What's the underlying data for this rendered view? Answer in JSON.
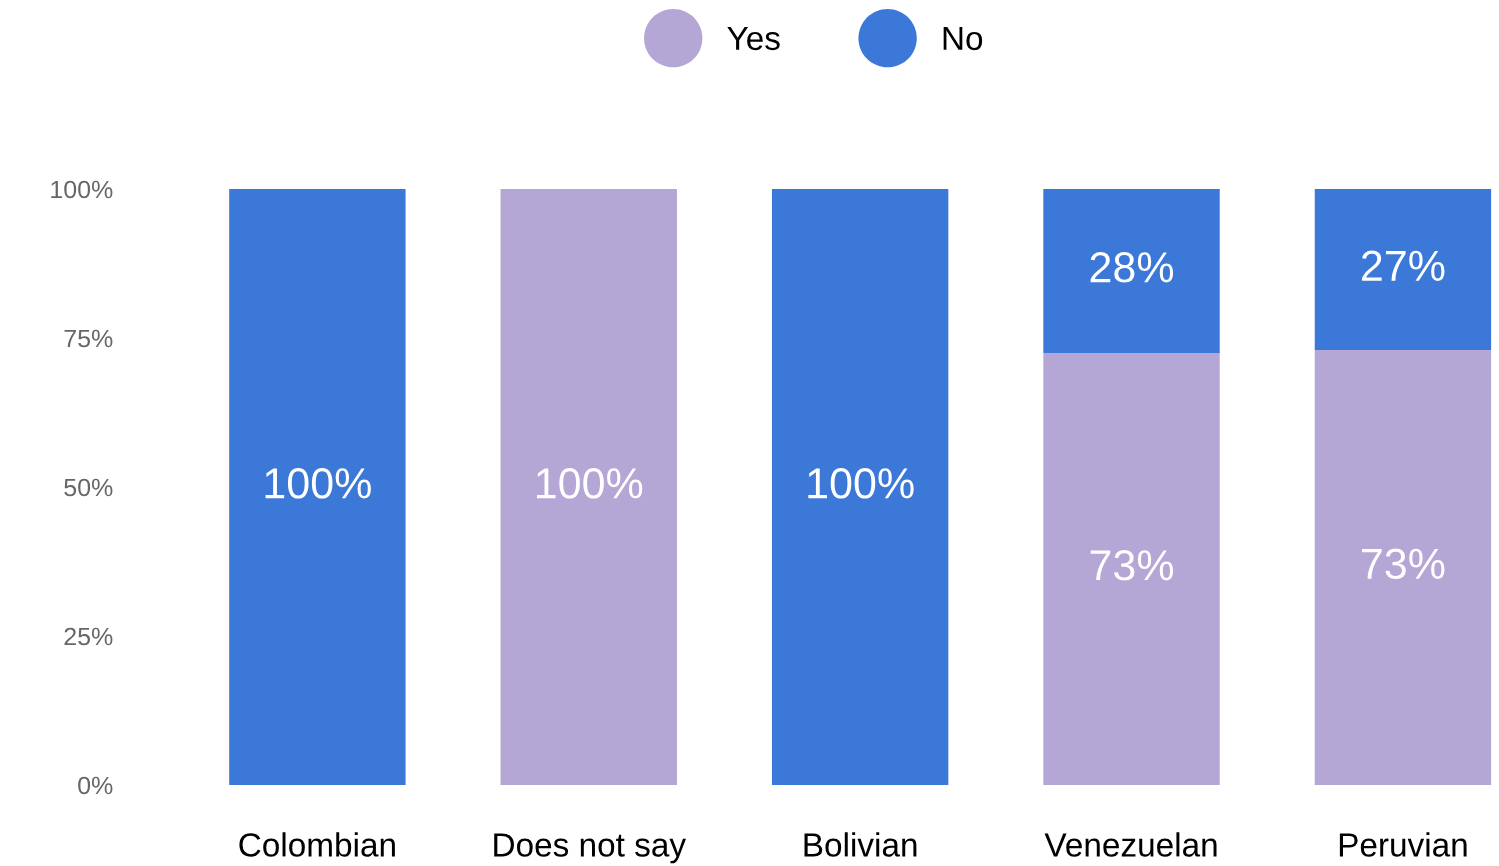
{
  "chart_data": {
    "type": "bar",
    "stacked": true,
    "categories": [
      "Colombian",
      "Does not say",
      "Bolivian",
      "Venezuelan",
      "Peruvian"
    ],
    "series": [
      {
        "name": "Yes",
        "color": "#b4a7d6",
        "values": [
          0,
          100,
          0,
          72.5,
          73
        ],
        "value_labels": [
          null,
          "100%",
          null,
          "73%",
          "73%"
        ]
      },
      {
        "name": "No",
        "color": "#3c78d8",
        "values": [
          100,
          0,
          100,
          27.5,
          27
        ],
        "value_labels": [
          "100%",
          null,
          "100%",
          "28%",
          "27%"
        ]
      }
    ],
    "ylim": [
      0,
      100
    ],
    "yticks": [
      {
        "value": 0,
        "label": "0%"
      },
      {
        "value": 25,
        "label": "25%"
      },
      {
        "value": 50,
        "label": "50%"
      },
      {
        "value": 75,
        "label": "75%"
      },
      {
        "value": 100,
        "label": "100%"
      }
    ],
    "grid": false,
    "legend": "top",
    "marker": "circle"
  }
}
